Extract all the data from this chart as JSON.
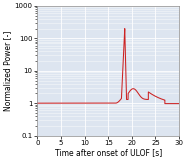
{
  "title": "",
  "xlabel": "Time after onset of ULOF [s]",
  "ylabel": "Normalized Power [-]",
  "xlim": [
    0,
    30
  ],
  "ylim": [
    0.1,
    1000
  ],
  "xticks": [
    0,
    5,
    10,
    15,
    20,
    25,
    30
  ],
  "yticks": [
    0.1,
    1,
    10,
    100,
    1000
  ],
  "ytick_labels": [
    "0.1",
    "1",
    "10",
    "100",
    "1000"
  ],
  "line_color": "#cc2222",
  "background_color": "#dde5f0",
  "figsize": [
    1.87,
    1.61
  ],
  "dpi": 100
}
